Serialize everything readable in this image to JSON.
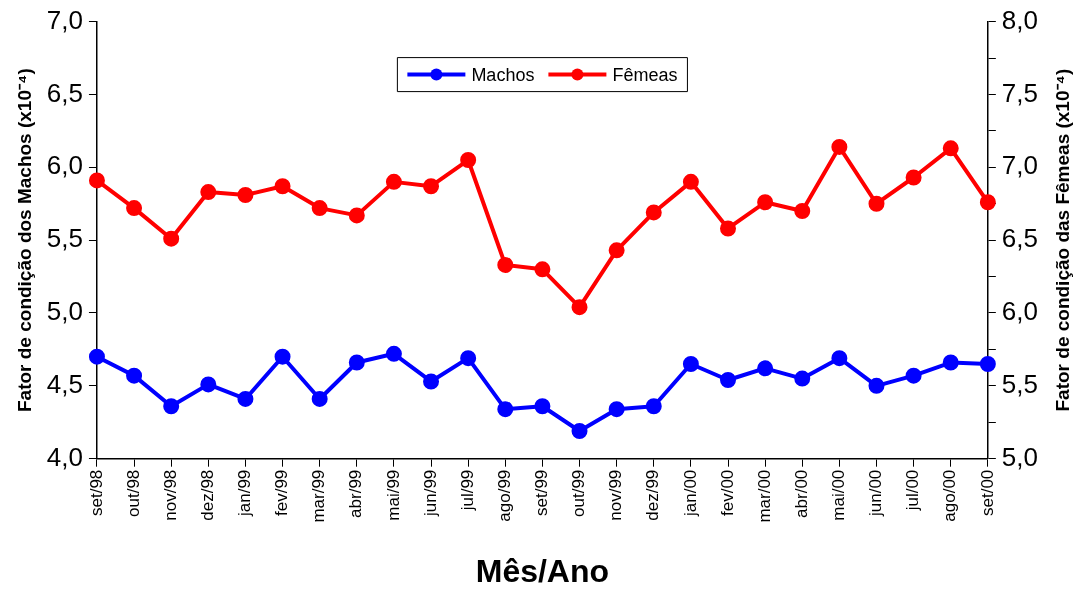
{
  "chart_data": {
    "type": "line",
    "xlabel": "Mês/Ano",
    "ylabel": "Fator de condição dos Machos (x10⁻⁴)",
    "y2label": "Fator de condição das Fêmeas (x10⁻⁴)",
    "categories": [
      "set/98",
      "out/98",
      "nov/98",
      "dez/98",
      "jan/99",
      "fev/99",
      "mar/99",
      "abr/99",
      "mai/99",
      "jun/99",
      "jul/99",
      "ago/99",
      "set/99",
      "out/99",
      "nov/99",
      "dez/99",
      "jan/00",
      "fev/00",
      "mar/00",
      "abr/00",
      "mai/00",
      "jun/00",
      "jul/00",
      "ago/00",
      "set/00"
    ],
    "series": [
      {
        "name": "Machos",
        "color": "#0000ff",
        "values": [
          4.7,
          4.57,
          4.36,
          4.51,
          4.41,
          4.7,
          4.41,
          4.66,
          4.72,
          4.53,
          4.69,
          4.34,
          4.36,
          4.19,
          4.34,
          4.36,
          4.65,
          4.54,
          4.62,
          4.55,
          4.69,
          4.5,
          4.57,
          4.66,
          4.65
        ]
      },
      {
        "name": "Fêmeas",
        "color": "#ff0000",
        "axis": "y2",
        "values": [
          6.91,
          6.72,
          6.51,
          6.83,
          6.81,
          6.87,
          6.72,
          6.67,
          6.9,
          6.87,
          7.05,
          6.33,
          6.3,
          6.04,
          6.43,
          6.69,
          6.9,
          6.58,
          6.76,
          6.7,
          7.14,
          6.75,
          6.93,
          7.13,
          6.76
        ]
      }
    ],
    "ylim": [
      4,
      7
    ],
    "yticks": [
      {
        "value": 4,
        "label": "4,0"
      },
      {
        "value": 4.5,
        "label": "4,5"
      },
      {
        "value": 5,
        "label": "5,0"
      },
      {
        "value": 5.5,
        "label": "5,5"
      },
      {
        "value": 6,
        "label": "6,0"
      },
      {
        "value": 6.5,
        "label": "6,5"
      },
      {
        "value": 7,
        "label": "7,0"
      }
    ],
    "y2lim": [
      5,
      8
    ],
    "y2ticks": [
      {
        "value": 5,
        "label": "5,0"
      },
      {
        "value": 5.25,
        "label": null
      },
      {
        "value": 5.5,
        "label": "5,5"
      },
      {
        "value": 5.75,
        "label": null
      },
      {
        "value": 6,
        "label": "6,0"
      },
      {
        "value": 6.25,
        "label": null
      },
      {
        "value": 6.5,
        "label": "6,5"
      },
      {
        "value": 6.75,
        "label": null
      },
      {
        "value": 7,
        "label": "7,0"
      },
      {
        "value": 7.25,
        "label": null
      },
      {
        "value": 7.5,
        "label": "7,5"
      },
      {
        "value": 7.75,
        "label": null
      },
      {
        "value": 8,
        "label": "8,0"
      }
    ],
    "grid": false,
    "legend": "top",
    "marker": "circle",
    "line_style": "solid"
  }
}
